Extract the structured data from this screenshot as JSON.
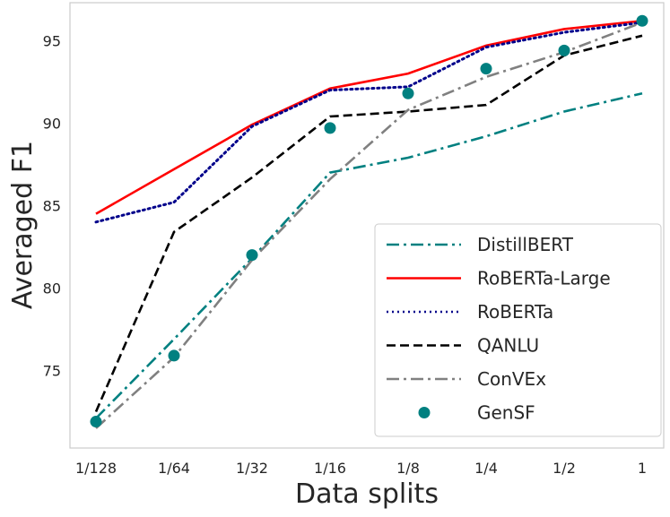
{
  "chart_data": {
    "type": "line",
    "title": "",
    "xlabel": "Data splits",
    "ylabel": "Averaged F1",
    "categories": [
      "1/128",
      "1/64",
      "1/32",
      "1/16",
      "1/8",
      "1/4",
      "1/2",
      "1"
    ],
    "ylim": [
      70.3,
      97.3
    ],
    "yticks": [
      75,
      80,
      85,
      90,
      95
    ],
    "grid": false,
    "legend_position": "bottom-right",
    "series": [
      {
        "name": "DistillBERT",
        "color": "#008080",
        "style": "dashdot",
        "values": [
          72.1,
          76.9,
          81.8,
          87.0,
          87.9,
          89.2,
          90.7,
          91.8
        ]
      },
      {
        "name": "RoBERTa-Large",
        "color": "#ff0000",
        "style": "solid",
        "values": [
          84.5,
          87.2,
          89.9,
          92.1,
          93.0,
          94.7,
          95.7,
          96.2
        ]
      },
      {
        "name": "RoBERTa",
        "color": "#00008b",
        "style": "dotted",
        "values": [
          84.0,
          85.2,
          89.8,
          92.0,
          92.2,
          94.6,
          95.5,
          96.1
        ]
      },
      {
        "name": "QANLU",
        "color": "#000000",
        "style": "dashed",
        "values": [
          72.5,
          83.4,
          86.7,
          90.4,
          90.7,
          91.1,
          94.1,
          95.3
        ]
      },
      {
        "name": "ConVEx",
        "color": "#808080",
        "style": "dashdot",
        "values": [
          71.5,
          75.8,
          81.7,
          86.6,
          90.8,
          92.8,
          94.3,
          96.1
        ]
      },
      {
        "name": "GenSF",
        "color": "#008080",
        "style": "marker",
        "values": [
          71.9,
          75.9,
          82.0,
          89.7,
          91.8,
          93.3,
          94.4,
          96.2
        ]
      }
    ]
  }
}
